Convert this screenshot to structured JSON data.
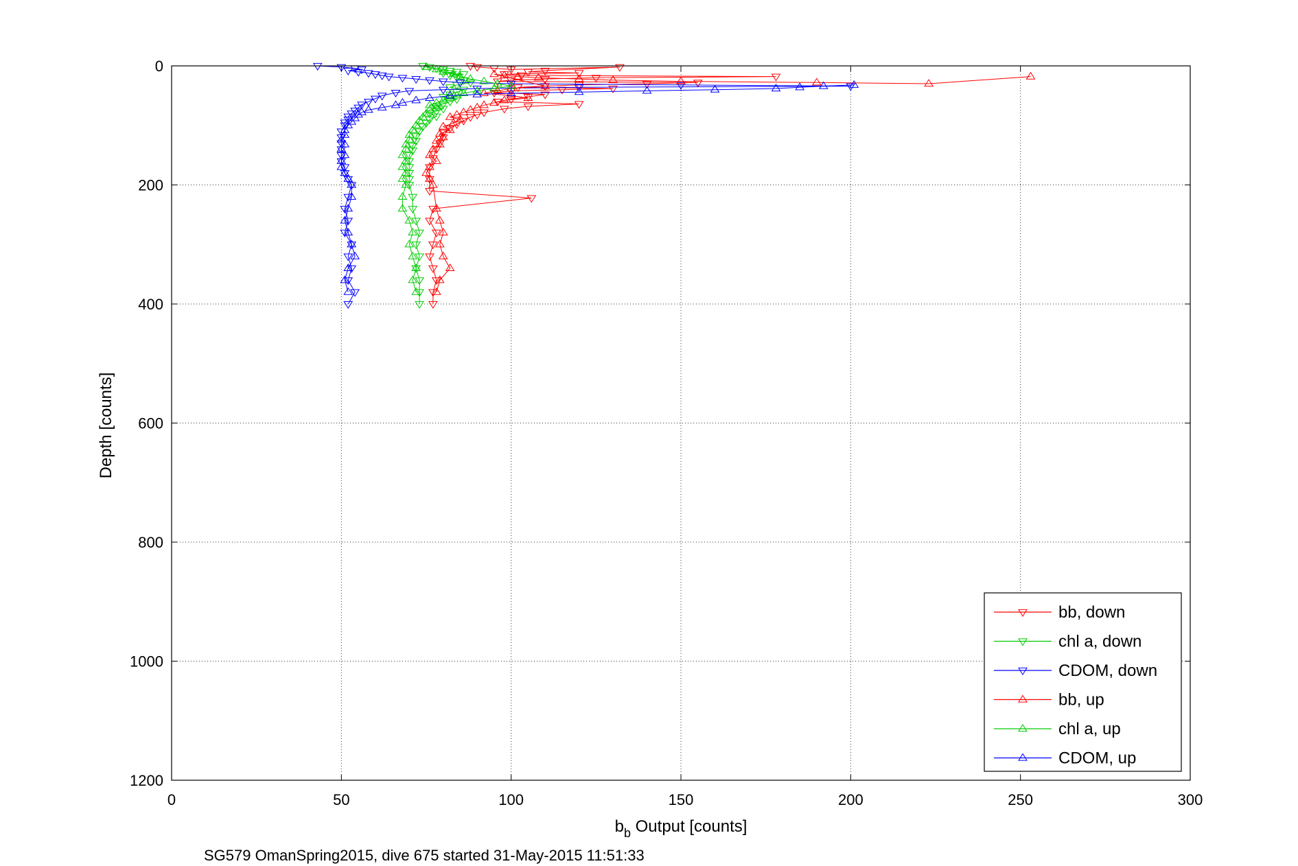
{
  "chart_data": {
    "type": "scatter",
    "title": "",
    "xlabel_base": "b",
    "xlabel_sub": "b",
    "xlabel_rest": " Output [counts]",
    "ylabel": "Depth [counts]",
    "caption": "SG579 OmanSpring2015, dive 675 started 31-May-2015 11:51:33",
    "xlim": [
      0,
      300
    ],
    "ylim": [
      0,
      1200
    ],
    "y_reversed": true,
    "grid": true,
    "legend_position": "bottom-right",
    "xticks": [
      0,
      50,
      100,
      150,
      200,
      250,
      300
    ],
    "yticks": [
      0,
      200,
      400,
      600,
      800,
      1000,
      1200
    ],
    "series": [
      {
        "name": "bb, down",
        "color": "#ff0000",
        "marker": "triangle-down",
        "points": [
          [
            88,
            0
          ],
          [
            90,
            2
          ],
          [
            95,
            4
          ],
          [
            100,
            6
          ],
          [
            132,
            2
          ],
          [
            110,
            8
          ],
          [
            105,
            10
          ],
          [
            120,
            12
          ],
          [
            98,
            14
          ],
          [
            103,
            16
          ],
          [
            178,
            18
          ],
          [
            125,
            20
          ],
          [
            110,
            22
          ],
          [
            100,
            24
          ],
          [
            96,
            26
          ],
          [
            155,
            28
          ],
          [
            140,
            30
          ],
          [
            120,
            32
          ],
          [
            110,
            34
          ],
          [
            102,
            36
          ],
          [
            130,
            38
          ],
          [
            115,
            40
          ],
          [
            100,
            42
          ],
          [
            95,
            45
          ],
          [
            110,
            48
          ],
          [
            105,
            52
          ],
          [
            100,
            56
          ],
          [
            96,
            60
          ],
          [
            120,
            64
          ],
          [
            105,
            68
          ],
          [
            98,
            72
          ],
          [
            92,
            78
          ],
          [
            90,
            82
          ],
          [
            88,
            86
          ],
          [
            86,
            92
          ],
          [
            84,
            98
          ],
          [
            82,
            105
          ],
          [
            80,
            112
          ],
          [
            80,
            120
          ],
          [
            79,
            130
          ],
          [
            78,
            140
          ],
          [
            77,
            155
          ],
          [
            76,
            170
          ],
          [
            76,
            190
          ],
          [
            76,
            210
          ],
          [
            106,
            222
          ],
          [
            77,
            240
          ],
          [
            76,
            260
          ],
          [
            78,
            280
          ],
          [
            77,
            300
          ],
          [
            76,
            320
          ],
          [
            77,
            340
          ],
          [
            78,
            360
          ],
          [
            77,
            380
          ],
          [
            77,
            400
          ]
        ]
      },
      {
        "name": "chl a, down",
        "color": "#00cc00",
        "marker": "triangle-down",
        "points": [
          [
            74,
            0
          ],
          [
            76,
            2
          ],
          [
            78,
            4
          ],
          [
            80,
            6
          ],
          [
            82,
            8
          ],
          [
            84,
            10
          ],
          [
            80,
            12
          ],
          [
            86,
            14
          ],
          [
            82,
            16
          ],
          [
            84,
            20
          ],
          [
            86,
            24
          ],
          [
            88,
            28
          ],
          [
            84,
            32
          ],
          [
            82,
            36
          ],
          [
            86,
            40
          ],
          [
            84,
            44
          ],
          [
            82,
            48
          ],
          [
            80,
            52
          ],
          [
            84,
            56
          ],
          [
            82,
            60
          ],
          [
            80,
            64
          ],
          [
            78,
            68
          ],
          [
            80,
            72
          ],
          [
            78,
            76
          ],
          [
            76,
            80
          ],
          [
            78,
            85
          ],
          [
            76,
            90
          ],
          [
            75,
            96
          ],
          [
            74,
            102
          ],
          [
            73,
            110
          ],
          [
            72,
            118
          ],
          [
            72,
            126
          ],
          [
            71,
            134
          ],
          [
            71,
            142
          ],
          [
            70,
            150
          ],
          [
            70,
            160
          ],
          [
            70,
            170
          ],
          [
            70,
            180
          ],
          [
            70,
            190
          ],
          [
            70,
            200
          ],
          [
            71,
            220
          ],
          [
            71,
            240
          ],
          [
            72,
            260
          ],
          [
            73,
            280
          ],
          [
            72,
            300
          ],
          [
            73,
            320
          ],
          [
            72,
            340
          ],
          [
            73,
            360
          ],
          [
            73,
            380
          ],
          [
            73,
            400
          ]
        ]
      },
      {
        "name": "CDOM, down",
        "color": "#0000ff",
        "marker": "triangle-down",
        "points": [
          [
            43,
            0
          ],
          [
            50,
            2
          ],
          [
            54,
            4
          ],
          [
            56,
            6
          ],
          [
            52,
            8
          ],
          [
            55,
            10
          ],
          [
            58,
            12
          ],
          [
            60,
            14
          ],
          [
            62,
            16
          ],
          [
            64,
            18
          ],
          [
            68,
            20
          ],
          [
            72,
            22
          ],
          [
            76,
            24
          ],
          [
            80,
            26
          ],
          [
            85,
            28
          ],
          [
            100,
            30
          ],
          [
            150,
            32
          ],
          [
            200,
            34
          ],
          [
            120,
            36
          ],
          [
            90,
            38
          ],
          [
            80,
            40
          ],
          [
            70,
            42
          ],
          [
            66,
            45
          ],
          [
            62,
            50
          ],
          [
            60,
            55
          ],
          [
            58,
            60
          ],
          [
            56,
            65
          ],
          [
            55,
            70
          ],
          [
            54,
            75
          ],
          [
            53,
            80
          ],
          [
            52,
            85
          ],
          [
            52,
            90
          ],
          [
            51,
            95
          ],
          [
            51,
            100
          ],
          [
            50,
            110
          ],
          [
            50,
            120
          ],
          [
            50,
            130
          ],
          [
            50,
            140
          ],
          [
            50,
            150
          ],
          [
            50,
            160
          ],
          [
            51,
            170
          ],
          [
            51,
            180
          ],
          [
            52,
            190
          ],
          [
            53,
            200
          ],
          [
            52,
            220
          ],
          [
            51,
            240
          ],
          [
            52,
            260
          ],
          [
            51,
            280
          ],
          [
            53,
            300
          ],
          [
            52,
            320
          ],
          [
            53,
            340
          ],
          [
            52,
            360
          ],
          [
            54,
            380
          ],
          [
            52,
            400
          ]
        ]
      },
      {
        "name": "bb, up",
        "color": "#ff0000",
        "marker": "triangle-up",
        "points": [
          [
            253,
            18
          ],
          [
            223,
            30
          ],
          [
            190,
            28
          ],
          [
            150,
            26
          ],
          [
            130,
            24
          ],
          [
            120,
            22
          ],
          [
            108,
            20
          ],
          [
            102,
            18
          ],
          [
            98,
            16
          ],
          [
            95,
            14
          ],
          [
            110,
            34
          ],
          [
            100,
            38
          ],
          [
            96,
            42
          ],
          [
            92,
            46
          ],
          [
            100,
            50
          ],
          [
            105,
            54
          ],
          [
            98,
            58
          ],
          [
            95,
            62
          ],
          [
            92,
            66
          ],
          [
            90,
            70
          ],
          [
            88,
            74
          ],
          [
            86,
            78
          ],
          [
            84,
            82
          ],
          [
            82,
            86
          ],
          [
            85,
            90
          ],
          [
            83,
            96
          ],
          [
            80,
            102
          ],
          [
            82,
            108
          ],
          [
            79,
            114
          ],
          [
            80,
            120
          ],
          [
            78,
            126
          ],
          [
            79,
            132
          ],
          [
            77,
            140
          ],
          [
            76,
            150
          ],
          [
            78,
            160
          ],
          [
            76,
            170
          ],
          [
            75,
            180
          ],
          [
            76,
            190
          ],
          [
            77,
            200
          ],
          [
            78,
            240
          ],
          [
            79,
            260
          ],
          [
            80,
            280
          ],
          [
            79,
            300
          ],
          [
            80,
            320
          ],
          [
            82,
            340
          ],
          [
            79,
            360
          ],
          [
            78,
            380
          ]
        ]
      },
      {
        "name": "chl a, up",
        "color": "#00cc00",
        "marker": "triangle-up",
        "points": [
          [
            75,
            2
          ],
          [
            78,
            6
          ],
          [
            80,
            10
          ],
          [
            83,
            14
          ],
          [
            85,
            18
          ],
          [
            88,
            22
          ],
          [
            92,
            26
          ],
          [
            96,
            30
          ],
          [
            100,
            34
          ],
          [
            95,
            38
          ],
          [
            90,
            42
          ],
          [
            86,
            46
          ],
          [
            84,
            50
          ],
          [
            82,
            54
          ],
          [
            80,
            58
          ],
          [
            78,
            62
          ],
          [
            76,
            66
          ],
          [
            78,
            70
          ],
          [
            76,
            74
          ],
          [
            75,
            80
          ],
          [
            74,
            86
          ],
          [
            73,
            92
          ],
          [
            72,
            100
          ],
          [
            71,
            108
          ],
          [
            70,
            116
          ],
          [
            70,
            124
          ],
          [
            69,
            132
          ],
          [
            69,
            140
          ],
          [
            68,
            150
          ],
          [
            69,
            160
          ],
          [
            68,
            170
          ],
          [
            69,
            180
          ],
          [
            68,
            190
          ],
          [
            69,
            200
          ],
          [
            68,
            220
          ],
          [
            68,
            240
          ],
          [
            70,
            260
          ],
          [
            71,
            280
          ],
          [
            70,
            300
          ],
          [
            71,
            320
          ],
          [
            72,
            340
          ],
          [
            71,
            360
          ],
          [
            72,
            380
          ]
        ]
      },
      {
        "name": "CDOM, up",
        "color": "#0000ff",
        "marker": "triangle-up",
        "points": [
          [
            201,
            32
          ],
          [
            192,
            34
          ],
          [
            185,
            36
          ],
          [
            178,
            38
          ],
          [
            160,
            40
          ],
          [
            140,
            42
          ],
          [
            120,
            44
          ],
          [
            100,
            46
          ],
          [
            90,
            48
          ],
          [
            82,
            50
          ],
          [
            76,
            54
          ],
          [
            72,
            58
          ],
          [
            68,
            62
          ],
          [
            66,
            66
          ],
          [
            62,
            70
          ],
          [
            58,
            74
          ],
          [
            56,
            78
          ],
          [
            55,
            82
          ],
          [
            54,
            88
          ],
          [
            53,
            94
          ],
          [
            52,
            100
          ],
          [
            51,
            108
          ],
          [
            51,
            116
          ],
          [
            50,
            124
          ],
          [
            51,
            132
          ],
          [
            50,
            140
          ],
          [
            51,
            150
          ],
          [
            50,
            160
          ],
          [
            50,
            170
          ],
          [
            51,
            180
          ],
          [
            52,
            190
          ],
          [
            53,
            200
          ],
          [
            53,
            220
          ],
          [
            52,
            240
          ],
          [
            51,
            260
          ],
          [
            52,
            280
          ],
          [
            53,
            300
          ],
          [
            54,
            320
          ],
          [
            52,
            340
          ],
          [
            51,
            360
          ],
          [
            52,
            380
          ]
        ]
      }
    ]
  }
}
